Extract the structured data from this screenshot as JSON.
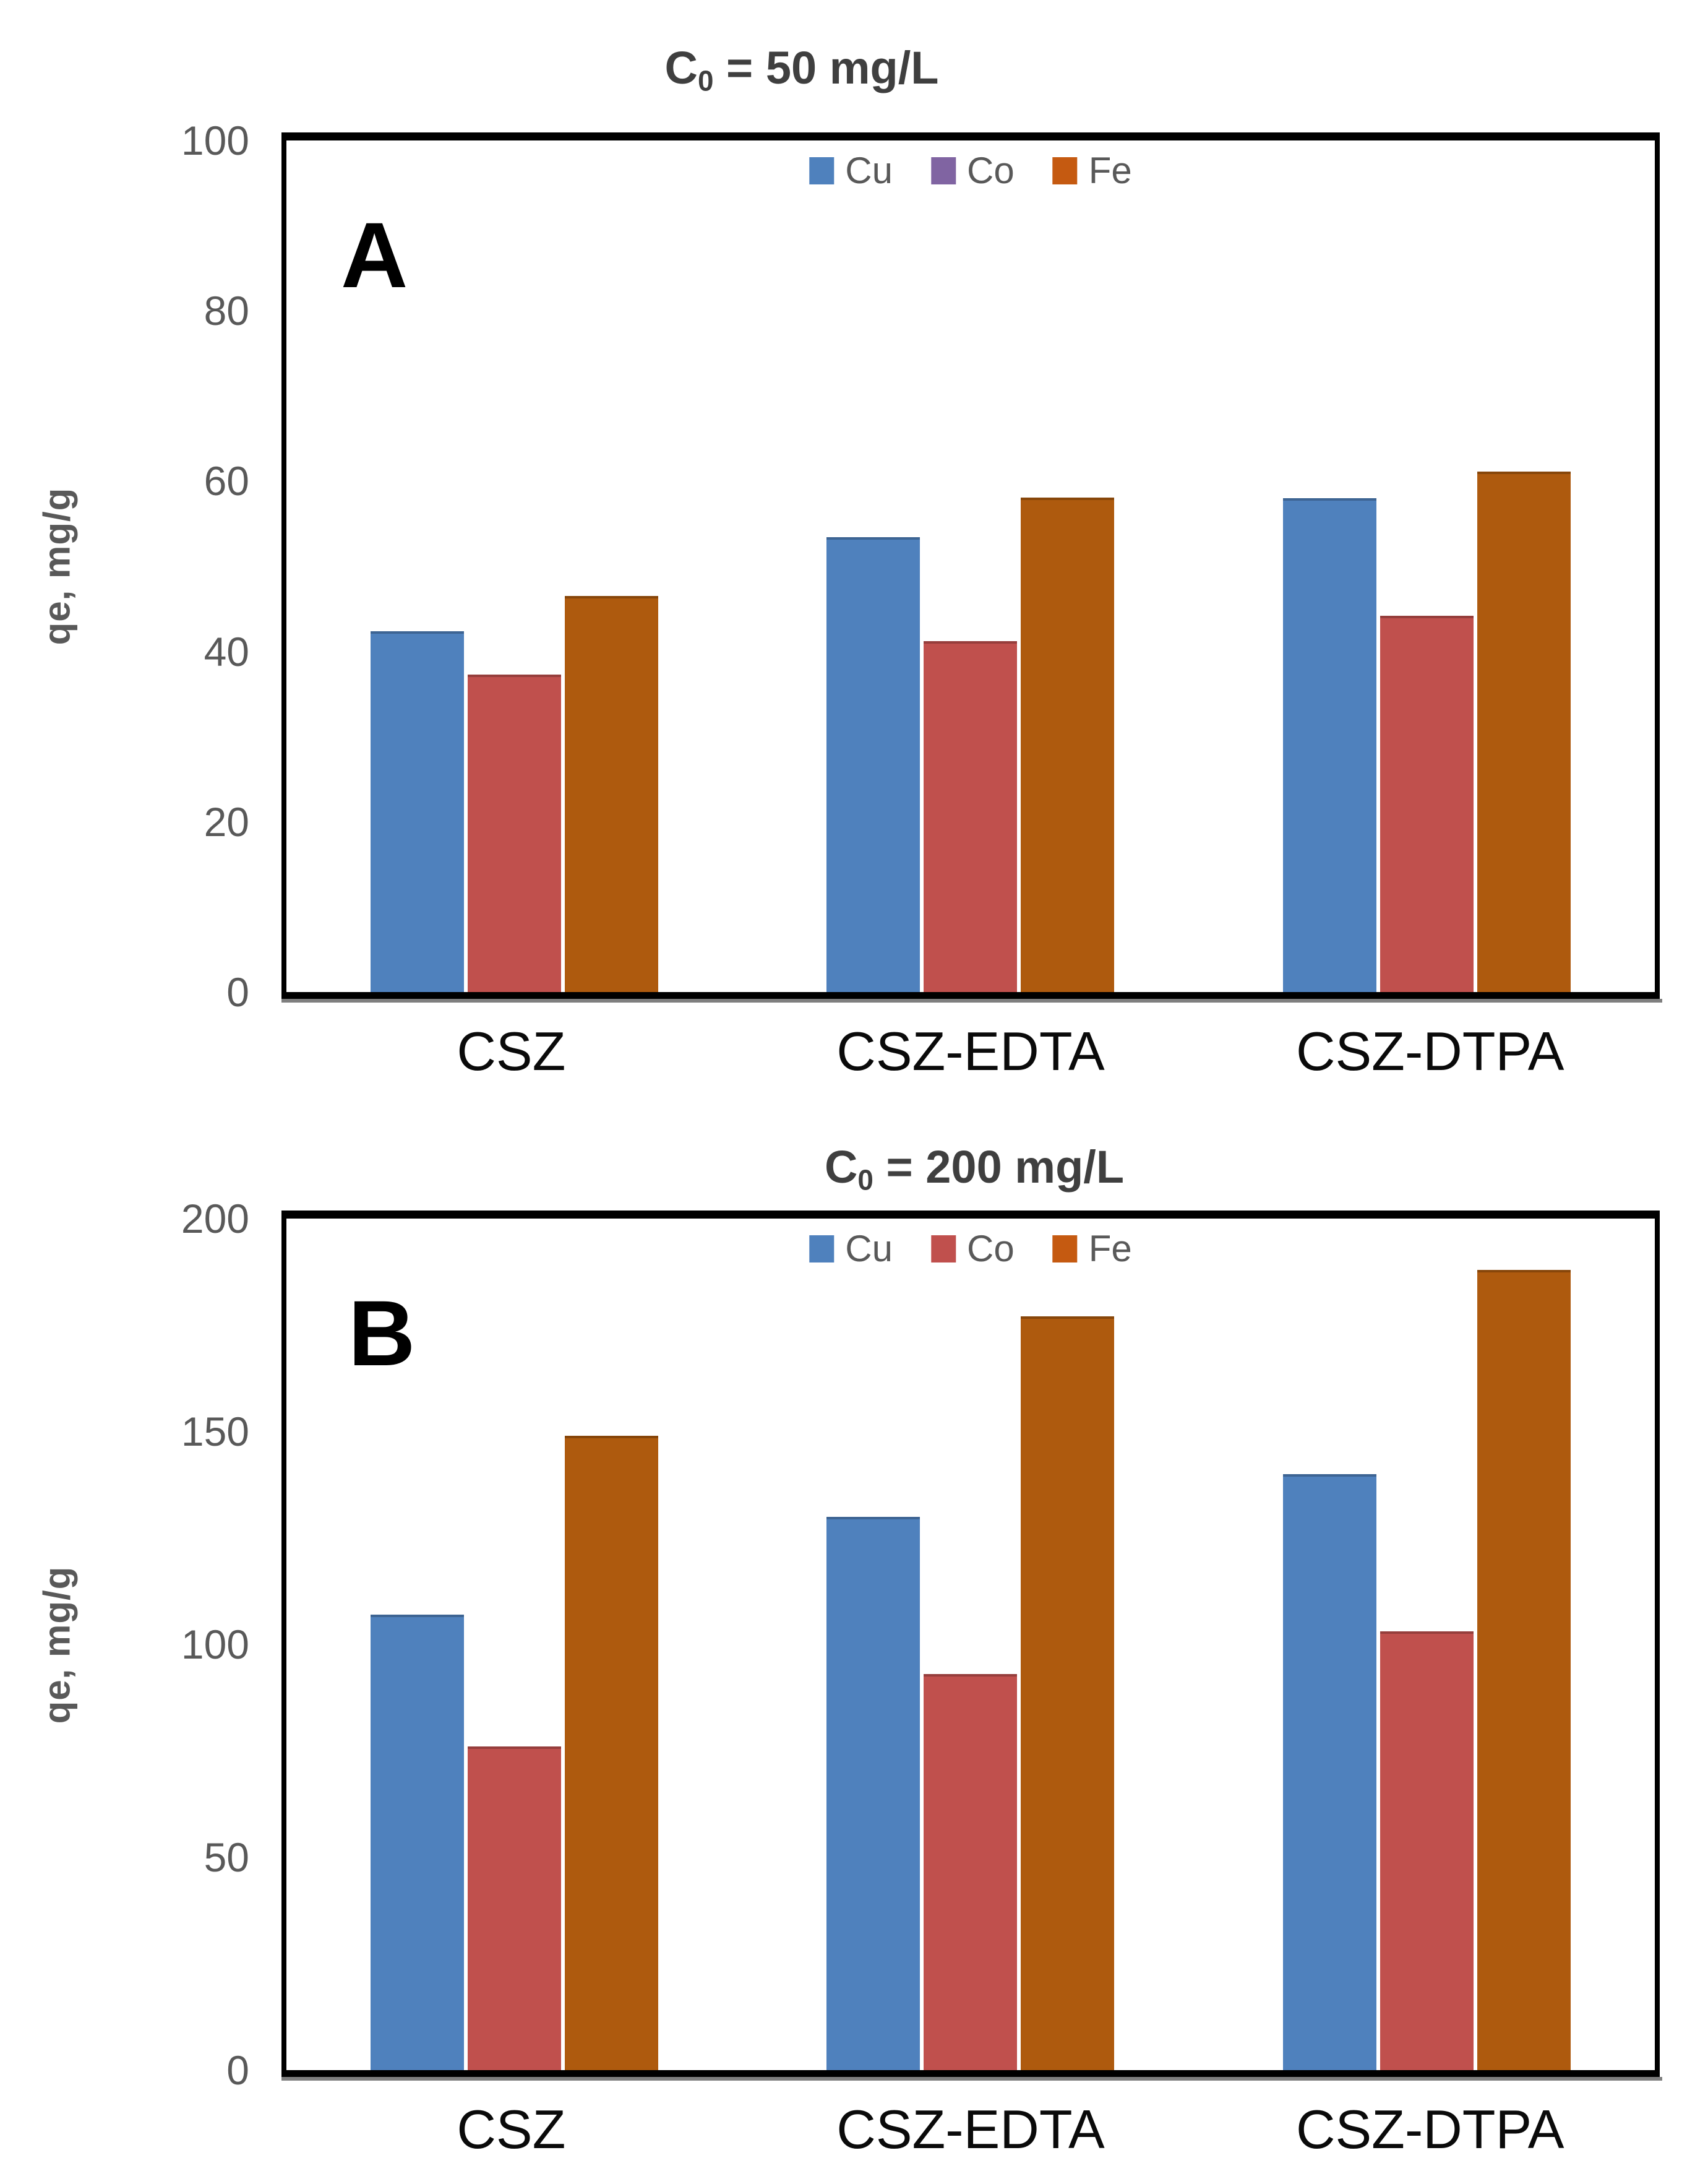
{
  "figure": {
    "background": "#ffffff",
    "frame_color": "#000000",
    "tick_text_color": "#595959",
    "title_text_color": "#3f3f3f"
  },
  "chart_data": [
    {
      "type": "bar",
      "panel_label": "A",
      "title": "C0 = 50 mg/L",
      "title_parts": {
        "main": "C",
        "sub": "0",
        "rest": " = 50 mg/L"
      },
      "ylabel": "qe, mg/g",
      "xlabel": "",
      "categories": [
        "CSZ",
        "CSZ-EDTA",
        "CSZ-DTPA"
      ],
      "series": [
        {
          "name": "Cu",
          "bar_color": "#4F81BD",
          "legend_color": "#4F81BD",
          "values": [
            42.4,
            53.4,
            58.0
          ]
        },
        {
          "name": "Co",
          "bar_color": "#C0504D",
          "legend_color": "#8064A2",
          "values": [
            37.3,
            41.2,
            44.2
          ]
        },
        {
          "name": "Fe",
          "bar_color": "#AE5A0E",
          "legend_color": "#C55A11",
          "values": [
            46.5,
            58.1,
            61.1
          ]
        }
      ],
      "ylim": [
        0,
        100
      ],
      "yticks": [
        0,
        20,
        40,
        60,
        80,
        100
      ],
      "grid": false,
      "legend_position": "top-center-inside"
    },
    {
      "type": "bar",
      "panel_label": "B",
      "title": "C0 = 200 mg/L",
      "title_parts": {
        "main": "C",
        "sub": "0",
        "rest": " = 200 mg/L"
      },
      "ylabel": "qe, mg/g",
      "xlabel": "",
      "categories": [
        "CSZ",
        "CSZ-EDTA",
        "CSZ-DTPA"
      ],
      "series": [
        {
          "name": "Cu",
          "bar_color": "#4F81BD",
          "legend_color": "#4F81BD",
          "values": [
            107,
            130,
            140
          ]
        },
        {
          "name": "Co",
          "bar_color": "#C0504D",
          "legend_color": "#C0504D",
          "values": [
            76,
            93,
            103
          ]
        },
        {
          "name": "Fe",
          "bar_color": "#AE5A0E",
          "legend_color": "#C55A11",
          "values": [
            149,
            177,
            188
          ]
        }
      ],
      "ylim": [
        0,
        200
      ],
      "yticks": [
        0,
        50,
        100,
        150,
        200
      ],
      "grid": false,
      "legend_position": "top-center-inside"
    }
  ]
}
